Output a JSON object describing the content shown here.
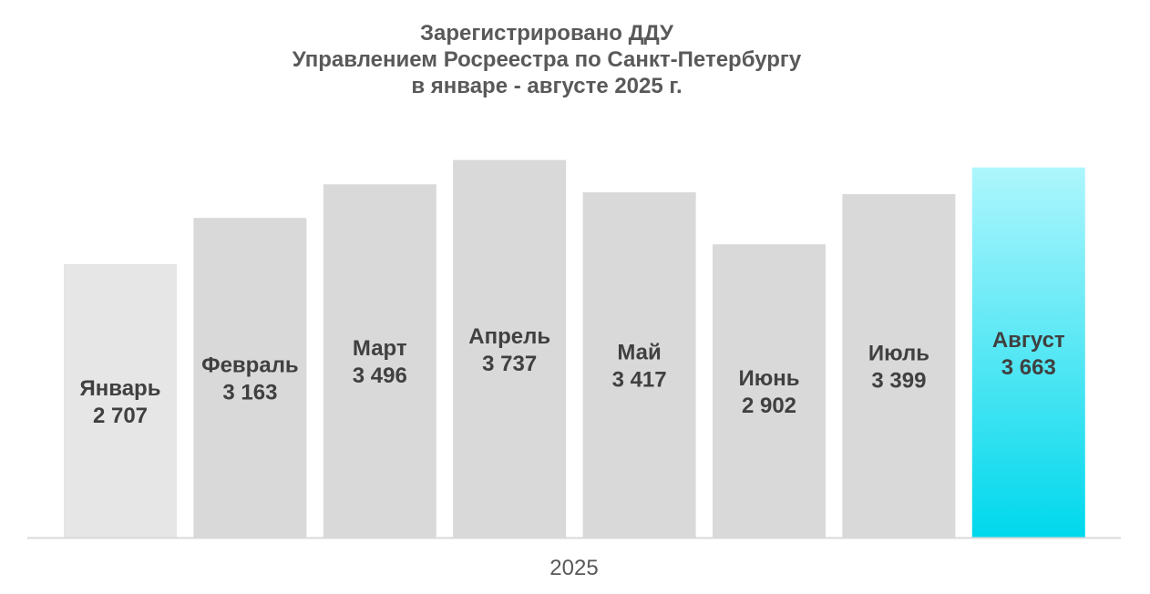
{
  "chart_data": {
    "type": "bar",
    "title_lines": [
      "Зарегистрировано ДДУ",
      "Управлением Росреестра по Санкт-Петербургу",
      "в январе - августе 2025 г."
    ],
    "categories": [
      "Январь",
      "Февраль",
      "Март",
      "Апрель",
      "Май",
      "Июнь",
      "Июль",
      "Август"
    ],
    "values": [
      2707,
      3163,
      3496,
      3737,
      3417,
      2902,
      3399,
      3663
    ],
    "value_labels": [
      "2 707",
      "3 163",
      "3 496",
      "3 737",
      "3 417",
      "2 902",
      "3 399",
      "3 663"
    ],
    "xlabel": "2025",
    "ylabel": "",
    "colors": {
      "first": "#e6e6e6",
      "default": "#d9d9d9",
      "highlight_top": "#aef6fd",
      "highlight_bottom": "#00d8ec",
      "axis": "#d9d9d9"
    }
  }
}
